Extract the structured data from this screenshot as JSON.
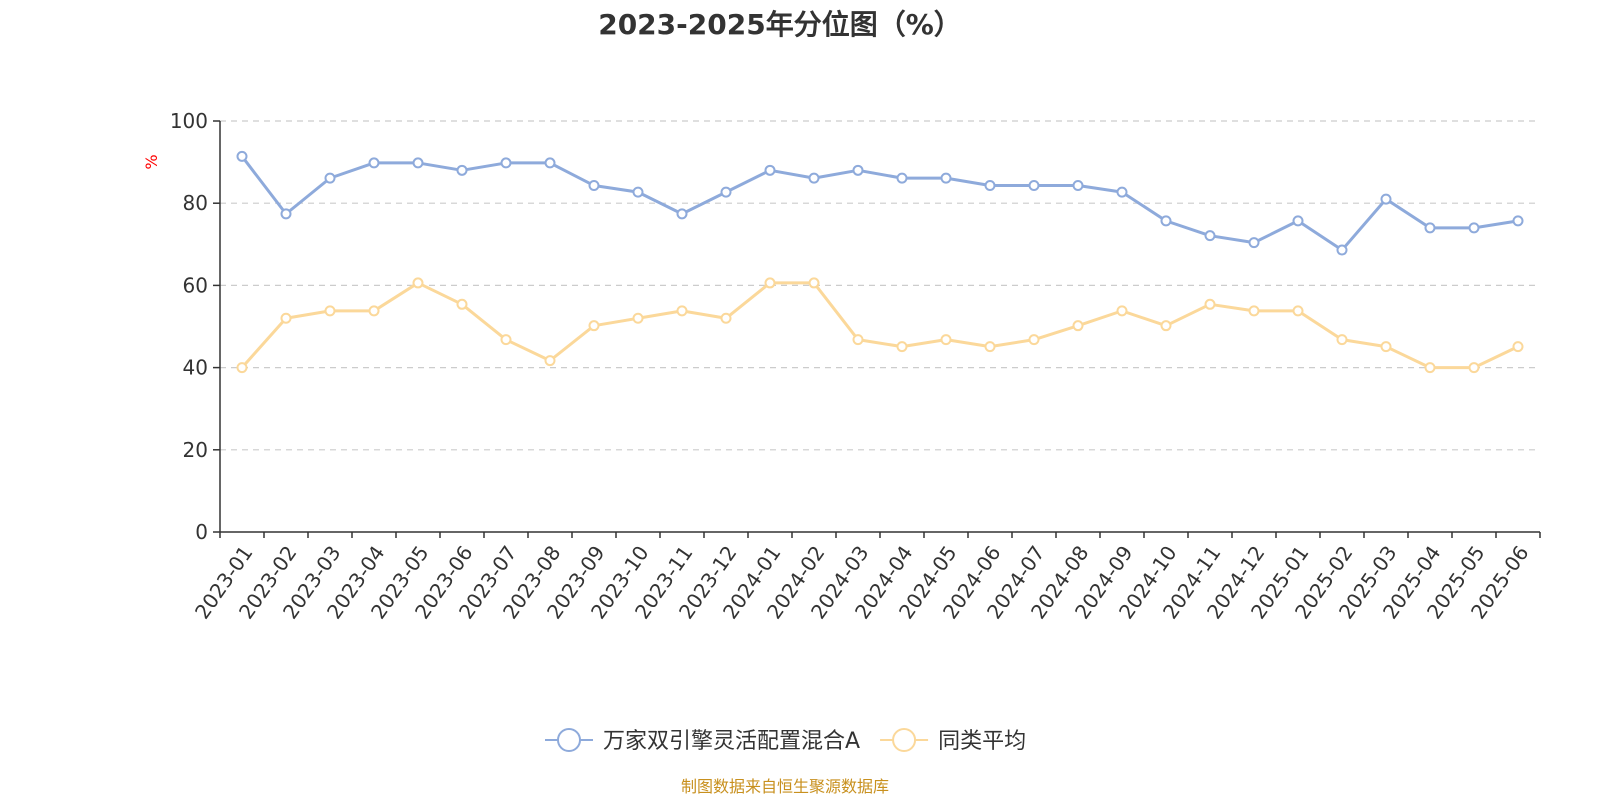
{
  "chart_data": {
    "type": "line",
    "title": "2023-2025年分位图（%）",
    "ylabel": "%",
    "ylim": [
      0,
      100
    ],
    "yticks": [
      "0",
      "20",
      "40",
      "60",
      "80",
      "100"
    ],
    "grid": "horizontal dashed",
    "legend_position": "bottom",
    "categories": [
      "2023-01",
      "2023-02",
      "2023-03",
      "2023-04",
      "2023-05",
      "2023-06",
      "2023-07",
      "2023-08",
      "2023-09",
      "2023-10",
      "2023-11",
      "2023-12",
      "2024-01",
      "2024-02",
      "2024-03",
      "2024-04",
      "2024-05",
      "2024-06",
      "2024-07",
      "2024-08",
      "2024-09",
      "2024-10",
      "2024-11",
      "2024-12",
      "2025-01",
      "2025-02",
      "2025-03",
      "2025-04",
      "2025-05",
      "2025-06"
    ],
    "series": [
      {
        "name": "万家双引擎灵活配置混合A",
        "color": "#8eaadb",
        "values": [
          91.4,
          77.4,
          86.1,
          89.8,
          89.8,
          88.0,
          89.8,
          89.8,
          84.3,
          82.7,
          77.4,
          82.7,
          88.0,
          86.1,
          88.0,
          86.1,
          86.1,
          84.3,
          84.3,
          84.3,
          82.7,
          75.7,
          72.1,
          70.4,
          75.7,
          68.6,
          81.0,
          74.0,
          74.0,
          75.7
        ]
      },
      {
        "name": "同类平均",
        "color": "#fbd89a",
        "values": [
          40.0,
          52.0,
          53.8,
          53.8,
          60.6,
          55.4,
          46.8,
          41.7,
          50.2,
          52.0,
          53.8,
          52.0,
          60.6,
          60.6,
          46.8,
          45.1,
          46.8,
          45.1,
          46.8,
          50.2,
          53.8,
          50.2,
          55.4,
          53.8,
          53.8,
          46.8,
          45.1,
          40.0,
          40.0,
          45.1
        ]
      }
    ]
  },
  "colors": {
    "unit_label": "#ff0000",
    "source_text": "#c8901e",
    "axis": "#333333",
    "grid": "#cccccc"
  },
  "source": "制图数据来自恒生聚源数据库"
}
